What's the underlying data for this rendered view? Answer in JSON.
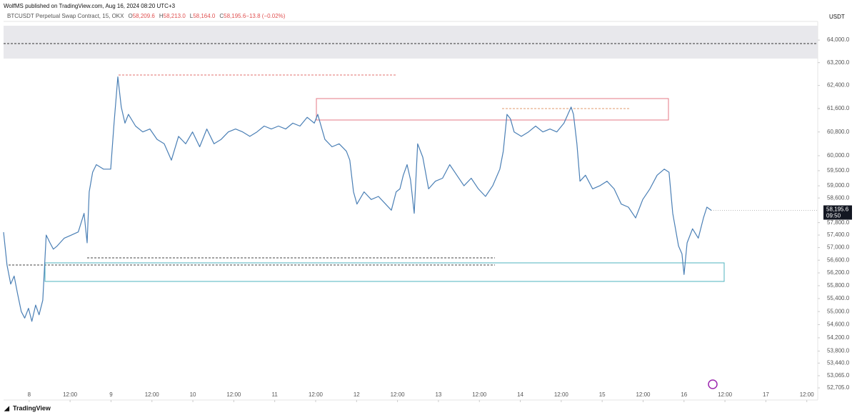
{
  "header": {
    "publisher": "WolfMS published on TradingView.com, Aug 16, 2024 08:20 UTC+3"
  },
  "footer": {
    "brand": "TradingView"
  },
  "chart_data": {
    "type": "line",
    "symbol": "BTCUSDT Perpetual Swap Contract, 15, OKX",
    "ohlc": [
      {
        "key": "O",
        "value": "58,209.6"
      },
      {
        "key": "H",
        "value": "58,213.0"
      },
      {
        "key": "L",
        "value": "58,164.0"
      },
      {
        "key": "C",
        "value": "58,195.6"
      },
      {
        "key": "",
        "value": "−13.8 (−0.02%)"
      }
    ],
    "currency": "USDT",
    "log_scale": true,
    "grid": false,
    "last_price": {
      "value": 58195.6,
      "label": "58,195.6"
    },
    "countdown": "09:50",
    "xlim": [
      -7.5,
      231.2
    ],
    "xticks": [
      {
        "value": 0,
        "label": "8"
      },
      {
        "value": 12,
        "label": "12:00"
      },
      {
        "value": 24,
        "label": "9"
      },
      {
        "value": 36,
        "label": "12:00"
      },
      {
        "value": 48,
        "label": "10"
      },
      {
        "value": 60,
        "label": "12:00"
      },
      {
        "value": 72,
        "label": "11"
      },
      {
        "value": 84,
        "label": "12:00"
      },
      {
        "value": 96,
        "label": "12"
      },
      {
        "value": 108,
        "label": "12:00"
      },
      {
        "value": 120,
        "label": "13"
      },
      {
        "value": 132,
        "label": "12:00"
      },
      {
        "value": 144,
        "label": "14"
      },
      {
        "value": 156,
        "label": "12:00"
      },
      {
        "value": 168,
        "label": "15"
      },
      {
        "value": 180,
        "label": "12:00"
      },
      {
        "value": 192,
        "label": "16"
      },
      {
        "value": 204,
        "label": "12:00"
      },
      {
        "value": 216,
        "label": "17"
      },
      {
        "value": 228,
        "label": "12:00"
      }
    ],
    "ylim": [
      52350,
      64670
    ],
    "yticks": [
      {
        "value": 64000,
        "label": "64,000.0"
      },
      {
        "value": 63200,
        "label": "63,200.0"
      },
      {
        "value": 62400,
        "label": "62,400.0"
      },
      {
        "value": 61600,
        "label": "61,600.0"
      },
      {
        "value": 60800,
        "label": "60,800.0"
      },
      {
        "value": 60000,
        "label": "60,000.0"
      },
      {
        "value": 59500,
        "label": "59,500.0"
      },
      {
        "value": 59000,
        "label": "59,000.0"
      },
      {
        "value": 58600,
        "label": "58,600.0"
      },
      {
        "value": 57800,
        "label": "57,800.0"
      },
      {
        "value": 57400,
        "label": "57,400.0"
      },
      {
        "value": 57000,
        "label": "57,000.0"
      },
      {
        "value": 56600,
        "label": "56,600.0"
      },
      {
        "value": 56200,
        "label": "56,200.0"
      },
      {
        "value": 55800,
        "label": "55,800.0"
      },
      {
        "value": 55400,
        "label": "55,400.0"
      },
      {
        "value": 55000,
        "label": "55,000.0"
      },
      {
        "value": 54600,
        "label": "54,600.0"
      },
      {
        "value": 54200,
        "label": "54,200.0"
      },
      {
        "value": 53800,
        "label": "53,800.0"
      },
      {
        "value": 53440,
        "label": "53,440.0"
      },
      {
        "value": 53065,
        "label": "53,065.0"
      },
      {
        "value": 52705,
        "label": "52,705.0"
      }
    ],
    "x": [
      -7.5,
      -6.5,
      -5.4,
      -4.4,
      -3.4,
      -2.3,
      -1.3,
      -0.2,
      0.8,
      1.9,
      2.9,
      4.0,
      5.0,
      6.1,
      7.1,
      8.2,
      10.3,
      12.4,
      14.4,
      16.1,
      17.0,
      17.6,
      18.6,
      19.7,
      21.8,
      23.9,
      24.9,
      26.0,
      27.0,
      28.1,
      29.1,
      31.2,
      33.3,
      35.4,
      37.5,
      39.6,
      41.7,
      43.8,
      45.9,
      47.9,
      50.0,
      52.1,
      54.2,
      56.3,
      58.4,
      60.5,
      62.6,
      64.7,
      66.8,
      68.9,
      71.0,
      73.1,
      75.2,
      77.3,
      79.4,
      81.5,
      83.6,
      84.6,
      86.7,
      88.8,
      90.9,
      93.0,
      94.0,
      95.1,
      96.1,
      98.2,
      100.3,
      102.4,
      104.5,
      106.2,
      107.6,
      108.7,
      109.7,
      110.8,
      111.8,
      112.9,
      113.9,
      115.4,
      117.1,
      119.1,
      121.2,
      123.3,
      125.4,
      127.5,
      129.6,
      131.7,
      133.8,
      135.9,
      138.0,
      139.0,
      140.1,
      141.1,
      142.2,
      144.3,
      146.4,
      148.5,
      150.6,
      152.7,
      154.7,
      156.8,
      158.9,
      159.6,
      160.6,
      161.5,
      163.1,
      165.2,
      167.3,
      169.4,
      171.5,
      173.6,
      175.7,
      177.8,
      179.9,
      182.0,
      184.1,
      186.2,
      187.6,
      188.7,
      190.4,
      191.4,
      192.0,
      192.9,
      194.5,
      196.2,
      197.7,
      198.7,
      200.0
    ],
    "series": [
      {
        "name": "BTCUSDT",
        "color": "#4a7fb5",
        "values": [
          57490,
          56450,
          55850,
          56100,
          55550,
          55000,
          54800,
          55100,
          54700,
          55200,
          54900,
          55350,
          57400,
          57150,
          56950,
          57050,
          57300,
          57400,
          57500,
          58100,
          57150,
          58800,
          59450,
          59700,
          59550,
          59550,
          61100,
          62700,
          61650,
          61100,
          61400,
          61000,
          60800,
          60900,
          60550,
          60400,
          59850,
          60650,
          60400,
          60800,
          60300,
          60900,
          60400,
          60550,
          60800,
          60900,
          60800,
          60650,
          60800,
          61000,
          60900,
          61000,
          60900,
          61100,
          61000,
          61300,
          61100,
          61400,
          60550,
          60300,
          60400,
          60150,
          59850,
          58800,
          58400,
          58800,
          58550,
          58650,
          58400,
          58200,
          58800,
          58900,
          59350,
          59700,
          59200,
          58100,
          60400,
          59950,
          58900,
          59150,
          59250,
          59700,
          59350,
          59000,
          59250,
          58900,
          58650,
          59000,
          59550,
          60150,
          61400,
          61250,
          60800,
          60650,
          60800,
          61000,
          60800,
          60900,
          60800,
          61100,
          61650,
          61400,
          60400,
          59150,
          59350,
          58900,
          59000,
          59150,
          58900,
          58400,
          58300,
          57950,
          58550,
          58900,
          59350,
          59550,
          59450,
          58100,
          57050,
          56800,
          56150,
          57150,
          57600,
          57300,
          57950,
          58300,
          58195.6
        ]
      }
    ]
  }
}
